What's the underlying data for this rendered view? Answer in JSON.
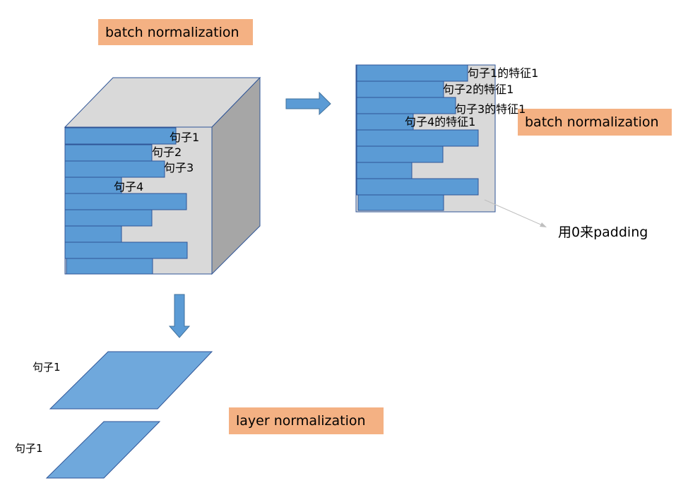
{
  "tags": {
    "batch_norm_top": "batch normalization",
    "batch_norm_right": "batch normalization",
    "layer_norm": "layer normalization"
  },
  "cube": {
    "sentences": [
      "句子1",
      "句子2",
      "句子3",
      "句子4"
    ]
  },
  "features": {
    "labels": [
      "句子1的特征1",
      "句子2的特征1",
      "句子3的特征1",
      "句子4的特征1"
    ]
  },
  "padding_note": "用0来padding",
  "layer": {
    "labels": [
      "句子1",
      "句子1"
    ]
  },
  "colors": {
    "bar_fill": "#5b9bd5",
    "bar_stroke": "#2f5597",
    "panel_fill": "#d9d9d9",
    "cube_top": "#d9d9d9",
    "cube_side": "#a6a6a6",
    "arrow": "#5b9bd5",
    "parallelogram": "#6fa8dc",
    "tag_bg": "#f4b183"
  }
}
